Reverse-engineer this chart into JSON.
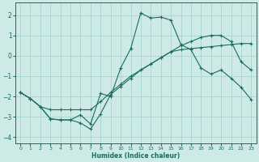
{
  "xlabel": "Humidex (Indice chaleur)",
  "xlim": [
    -0.5,
    23.5
  ],
  "ylim": [
    -4.3,
    2.6
  ],
  "yticks": [
    -4,
    -3,
    -2,
    -1,
    0,
    1,
    2
  ],
  "xticks": [
    0,
    1,
    2,
    3,
    4,
    5,
    6,
    7,
    8,
    9,
    10,
    11,
    12,
    13,
    14,
    15,
    16,
    17,
    18,
    19,
    20,
    21,
    22,
    23
  ],
  "bg_color": "#ceeae6",
  "grid_color": "#a8d4cf",
  "line_color": "#1a6b60",
  "line1_x": [
    0,
    1,
    2,
    3,
    4,
    5,
    6,
    7,
    8,
    9,
    10,
    11,
    12,
    13,
    14,
    15,
    16,
    17,
    18,
    19,
    20,
    21,
    22,
    23
  ],
  "line1_y": [
    -1.8,
    -2.1,
    -2.5,
    -3.1,
    -3.15,
    -3.15,
    -3.3,
    -3.6,
    -2.85,
    -1.9,
    -1.5,
    -1.1,
    -0.7,
    -0.4,
    -0.1,
    0.2,
    0.3,
    0.35,
    0.4,
    0.45,
    0.5,
    0.55,
    0.6,
    0.6
  ],
  "line2_x": [
    0,
    1,
    2,
    3,
    4,
    5,
    6,
    7,
    8,
    9,
    10,
    11,
    12,
    13,
    14,
    15,
    16,
    17,
    18,
    19,
    20,
    21,
    22,
    23
  ],
  "line2_y": [
    -1.8,
    -2.1,
    -2.5,
    -2.65,
    -2.65,
    -2.65,
    -2.65,
    -2.65,
    -2.25,
    -1.8,
    -1.4,
    -1.0,
    -0.7,
    -0.4,
    -0.1,
    0.2,
    0.5,
    0.7,
    0.9,
    1.0,
    1.0,
    0.7,
    -0.3,
    -0.7
  ],
  "line3_x": [
    0,
    1,
    2,
    3,
    4,
    5,
    6,
    7,
    8,
    9,
    10,
    11,
    12,
    13,
    14,
    15,
    16,
    17,
    18,
    19,
    20,
    21,
    22,
    23
  ],
  "line3_y": [
    -1.8,
    -2.1,
    -2.5,
    -3.1,
    -3.15,
    -3.15,
    -2.9,
    -3.35,
    -1.85,
    -2.0,
    -0.6,
    0.35,
    2.1,
    1.85,
    1.9,
    1.75,
    0.55,
    0.3,
    -0.6,
    -0.9,
    -0.7,
    -1.1,
    -1.55,
    -2.15
  ]
}
